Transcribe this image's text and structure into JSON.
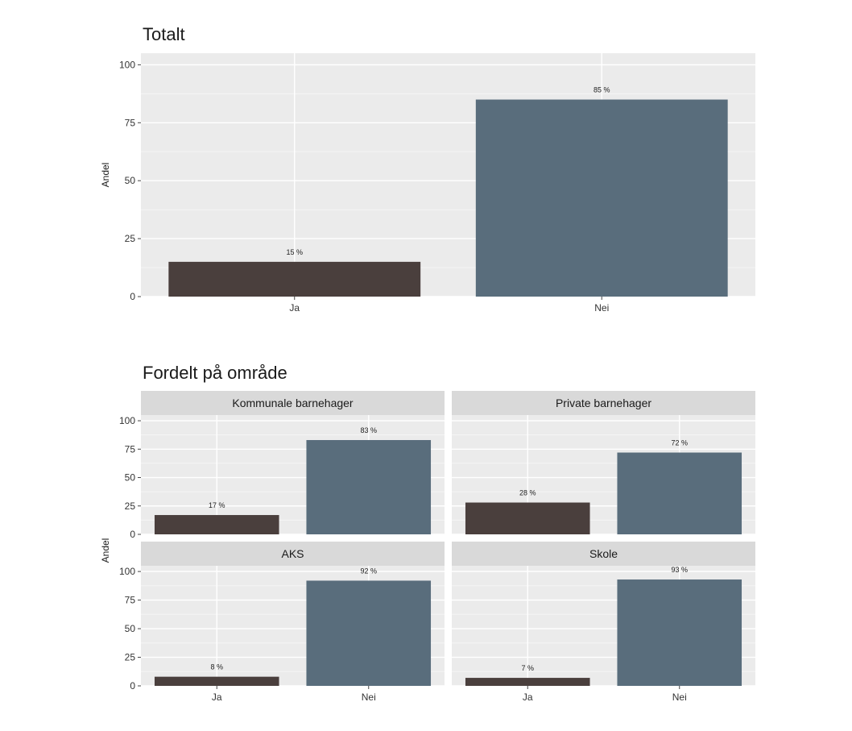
{
  "colors": {
    "ja": "#4a3f3d",
    "nei": "#596d7c",
    "panel_bg": "#ebebeb",
    "strip_bg": "#d9d9d9",
    "grid_major": "#ffffff",
    "grid_minor": "#f5f5f5"
  },
  "chart_data": [
    {
      "type": "bar",
      "title": "Totalt",
      "xlabel": "",
      "ylabel": "Andel",
      "categories": [
        "Ja",
        "Nei"
      ],
      "values": [
        15,
        85
      ],
      "labels": [
        "15 %",
        "85 %"
      ],
      "ylim": [
        0,
        105
      ],
      "yticks": [
        0,
        25,
        50,
        75,
        100
      ],
      "grid": true,
      "legend": "none"
    },
    {
      "type": "bar",
      "title": "Fordelt på område",
      "xlabel": "",
      "ylabel": "Andel",
      "categories": [
        "Ja",
        "Nei"
      ],
      "ylim": [
        0,
        105
      ],
      "yticks": [
        0,
        25,
        50,
        75,
        100
      ],
      "grid": true,
      "legend": "none",
      "facets": [
        {
          "name": "Kommunale barnehager",
          "values": [
            17,
            83
          ],
          "labels": [
            "17 %",
            "83 %"
          ]
        },
        {
          "name": "Private barnehager",
          "values": [
            28,
            72
          ],
          "labels": [
            "28 %",
            "72 %"
          ]
        },
        {
          "name": "AKS",
          "values": [
            8,
            92
          ],
          "labels": [
            "8 %",
            "92 %"
          ]
        },
        {
          "name": "Skole",
          "values": [
            7,
            93
          ],
          "labels": [
            "7 %",
            "93 %"
          ]
        }
      ]
    }
  ]
}
